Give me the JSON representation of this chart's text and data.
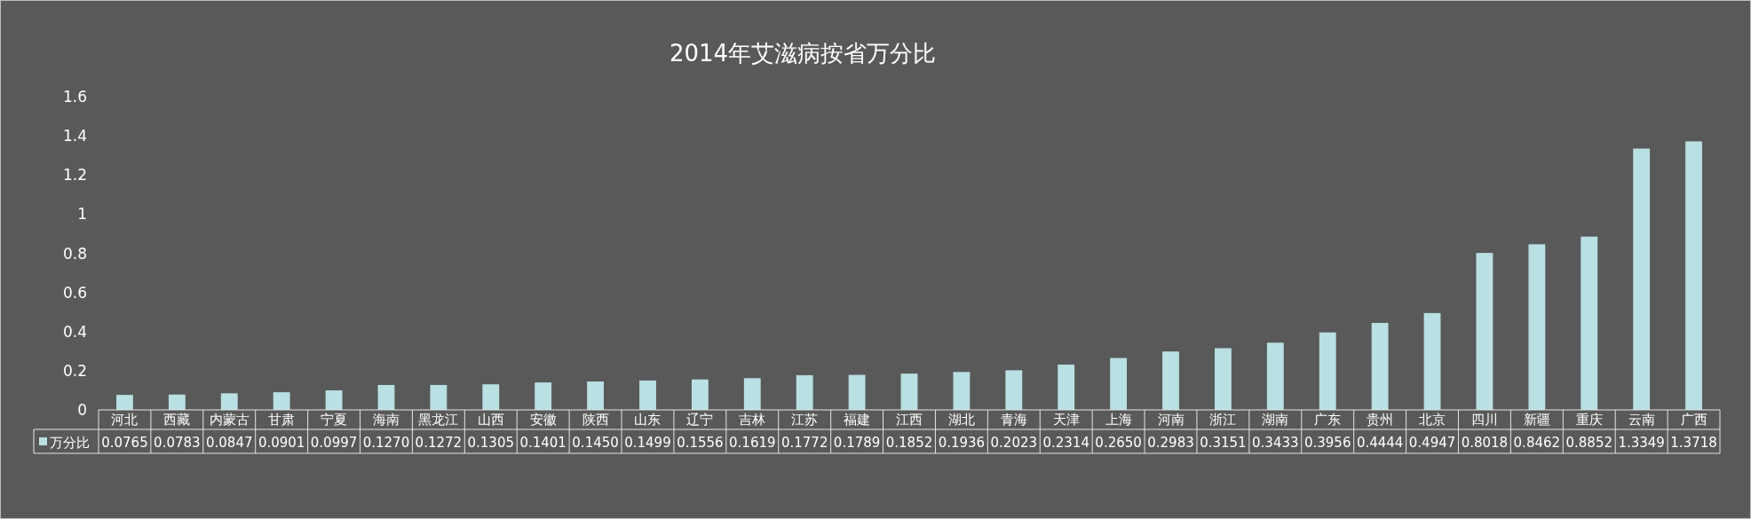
{
  "chart_data": {
    "type": "bar",
    "title": "2014年艾滋病按省万分比",
    "categories": [
      "河北",
      "西藏",
      "内蒙古",
      "甘肃",
      "宁夏",
      "海南",
      "黑龙江",
      "山西",
      "安徽",
      "陕西",
      "山东",
      "辽宁",
      "吉林",
      "江苏",
      "福建",
      "江西",
      "湖北",
      "青海",
      "天津",
      "上海",
      "河南",
      "浙江",
      "湖南",
      "广东",
      "贵州",
      "北京",
      "四川",
      "新疆",
      "重庆",
      "云南",
      "广西"
    ],
    "series": [
      {
        "name": "万分比",
        "color": "#b9e0e3",
        "values": [
          0.0765,
          0.0783,
          0.0847,
          0.0901,
          0.0997,
          0.127,
          0.1272,
          0.1305,
          0.1401,
          0.145,
          0.1499,
          0.1556,
          0.1619,
          0.1772,
          0.1789,
          0.1852,
          0.1936,
          0.2023,
          0.2314,
          0.265,
          0.2983,
          0.3151,
          0.3433,
          0.3956,
          0.4444,
          0.4947,
          0.8018,
          0.8462,
          0.8852,
          1.3349,
          1.3718
        ],
        "value_labels": [
          "0.0765",
          "0.0783",
          "0.0847",
          "0.0901",
          "0.0997",
          "0.1270",
          "0.1272",
          "0.1305",
          "0.1401",
          "0.1450",
          "0.1499",
          "0.1556",
          "0.1619",
          "0.1772",
          "0.1789",
          "0.1852",
          "0.1936",
          "0.2023",
          "0.2314",
          "0.2650",
          "0.2983",
          "0.3151",
          "0.3433",
          "0.3956",
          "0.4444",
          "0.4947",
          "0.8018",
          "0.8462",
          "0.8852",
          "1.3349",
          "1.3718"
        ]
      }
    ],
    "ylim": [
      0,
      1.6
    ],
    "yticks": [
      0,
      0.2,
      0.4,
      0.6,
      0.8,
      1,
      1.2,
      1.4,
      1.6
    ],
    "grid": false,
    "legend": "bottom"
  }
}
